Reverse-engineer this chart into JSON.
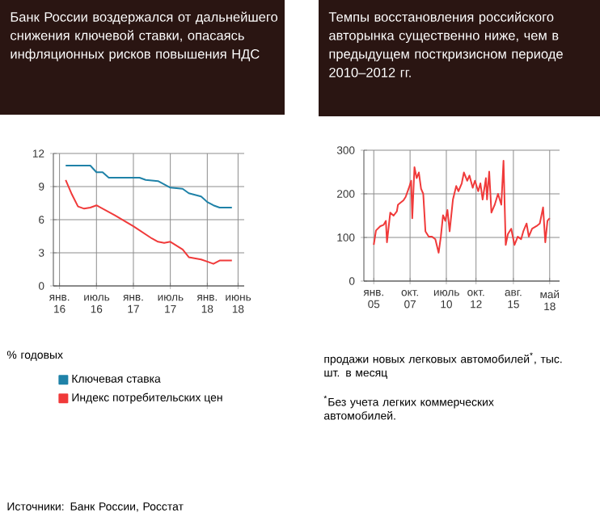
{
  "chart_data": [
    {
      "type": "line",
      "title": "Банк России воздержался от дальнейшего снижения ключевой ставки, опасаясь инфляционных рисков повышения НДС",
      "ylabel": "% годовых",
      "xlim": [
        "2015-12",
        "2018-07"
      ],
      "xticks": [
        {
          "value": "2016-01",
          "label": "янв. 16"
        },
        {
          "value": "2016-07",
          "label": "июль 16"
        },
        {
          "value": "2017-01",
          "label": "янв. 17"
        },
        {
          "value": "2017-07",
          "label": "июль 17"
        },
        {
          "value": "2018-01",
          "label": "янв. 18"
        },
        {
          "value": "2018-06",
          "label": "июнь 18"
        }
      ],
      "ylim": [
        0,
        12
      ],
      "yticks": [
        0,
        3,
        6,
        9,
        12
      ],
      "grid": true,
      "legend": "bottom",
      "series": [
        {
          "name": "Ключевая ставка",
          "color": "#1f82a8",
          "x": [
            "2016-02",
            "2016-06",
            "2016-07",
            "2016-08",
            "2016-09",
            "2017-02",
            "2017-03",
            "2017-05",
            "2017-07",
            "2017-09",
            "2017-10",
            "2017-12",
            "2018-01",
            "2018-02",
            "2018-03",
            "2018-05"
          ],
          "values": [
            10.9,
            10.9,
            10.3,
            10.3,
            9.8,
            9.8,
            9.6,
            9.5,
            8.9,
            8.8,
            8.4,
            8.1,
            7.6,
            7.3,
            7.1,
            7.1
          ]
        },
        {
          "name": "Индекс потребительских цен",
          "color": "#f03a3a",
          "x": [
            "2016-02",
            "2016-03",
            "2016-04",
            "2016-05",
            "2016-06",
            "2016-07",
            "2016-10",
            "2017-01",
            "2017-04",
            "2017-05",
            "2017-06",
            "2017-07",
            "2017-09",
            "2017-10",
            "2017-12",
            "2018-01",
            "2018-02",
            "2018-03",
            "2018-05"
          ],
          "values": [
            9.6,
            8.3,
            7.2,
            7.0,
            7.1,
            7.3,
            6.4,
            5.4,
            4.3,
            4.0,
            3.9,
            4.0,
            3.3,
            2.6,
            2.4,
            2.2,
            2.0,
            2.3,
            2.3
          ]
        }
      ],
      "annotations": [
        "Источники: Банк России, Росстат"
      ]
    },
    {
      "type": "line",
      "title": "Темпы восстановления российского авторынка существенно ниже, чем в предыдущем посткризисном периоде 2010–2012 гг.",
      "ylabel": "продажи новых легковых автомобилей$^{*}$, тыс. шт. в месяц",
      "xlim": [
        "2004-04",
        "2019-02"
      ],
      "xticks": [
        {
          "value": "2005-01",
          "label": "янв. 05"
        },
        {
          "value": "2007-10",
          "label": "окт. 07"
        },
        {
          "value": "2010-07",
          "label": "июль 10"
        },
        {
          "value": "2012-10",
          "label": "окт. 12"
        },
        {
          "value": "2015-08",
          "label": "авг. 15"
        },
        {
          "value": "2018-05",
          "label": "май 18"
        }
      ],
      "ylim": [
        0,
        300
      ],
      "yticks": [
        0,
        100,
        200,
        300
      ],
      "grid": true,
      "series": [
        {
          "color": "#f03a3a",
          "x": [
            "2005-01",
            "2005-03",
            "2005-07",
            "2005-10",
            "2005-12",
            "2006-01",
            "2006-04",
            "2006-07",
            "2006-10",
            "2006-11",
            "2007-04",
            "2007-06",
            "2007-09",
            "2007-11",
            "2007-12",
            "2008-02",
            "2008-04",
            "2008-06",
            "2008-08",
            "2008-10",
            "2008-12",
            "2009-03",
            "2009-06",
            "2009-09",
            "2009-12",
            "2010-02",
            "2010-04",
            "2010-06",
            "2010-08",
            "2010-10",
            "2011-01",
            "2011-04",
            "2011-06",
            "2011-09",
            "2011-11",
            "2012-02",
            "2012-04",
            "2012-07",
            "2012-09",
            "2012-12",
            "2013-02",
            "2013-04",
            "2013-07",
            "2013-08",
            "2013-10",
            "2013-12",
            "2014-03",
            "2014-06",
            "2014-09",
            "2014-11",
            "2015-01",
            "2015-03",
            "2015-06",
            "2015-09",
            "2015-12",
            "2016-03",
            "2016-05",
            "2016-08",
            "2016-10",
            "2017-01",
            "2017-05",
            "2017-08",
            "2017-11",
            "2018-01",
            "2018-03",
            "2018-05"
          ],
          "values": [
            83,
            116,
            126,
            129,
            138,
            89,
            157,
            150,
            160,
            175,
            185,
            193,
            214,
            230,
            144,
            261,
            236,
            249,
            212,
            200,
            114,
            102,
            102,
            96,
            65,
            102,
            151,
            138,
            163,
            114,
            187,
            218,
            206,
            224,
            249,
            230,
            242,
            214,
            230,
            206,
            224,
            187,
            236,
            187,
            251,
            157,
            175,
            200,
            175,
            276,
            83,
            108,
            120,
            83,
            102,
            96,
            114,
            132,
            102,
            120,
            126,
            132,
            169,
            89,
            138,
            144
          ]
        }
      ],
      "annotations": [
        "$^{*}$Без учета легких коммерческих автомобилей."
      ]
    }
  ]
}
